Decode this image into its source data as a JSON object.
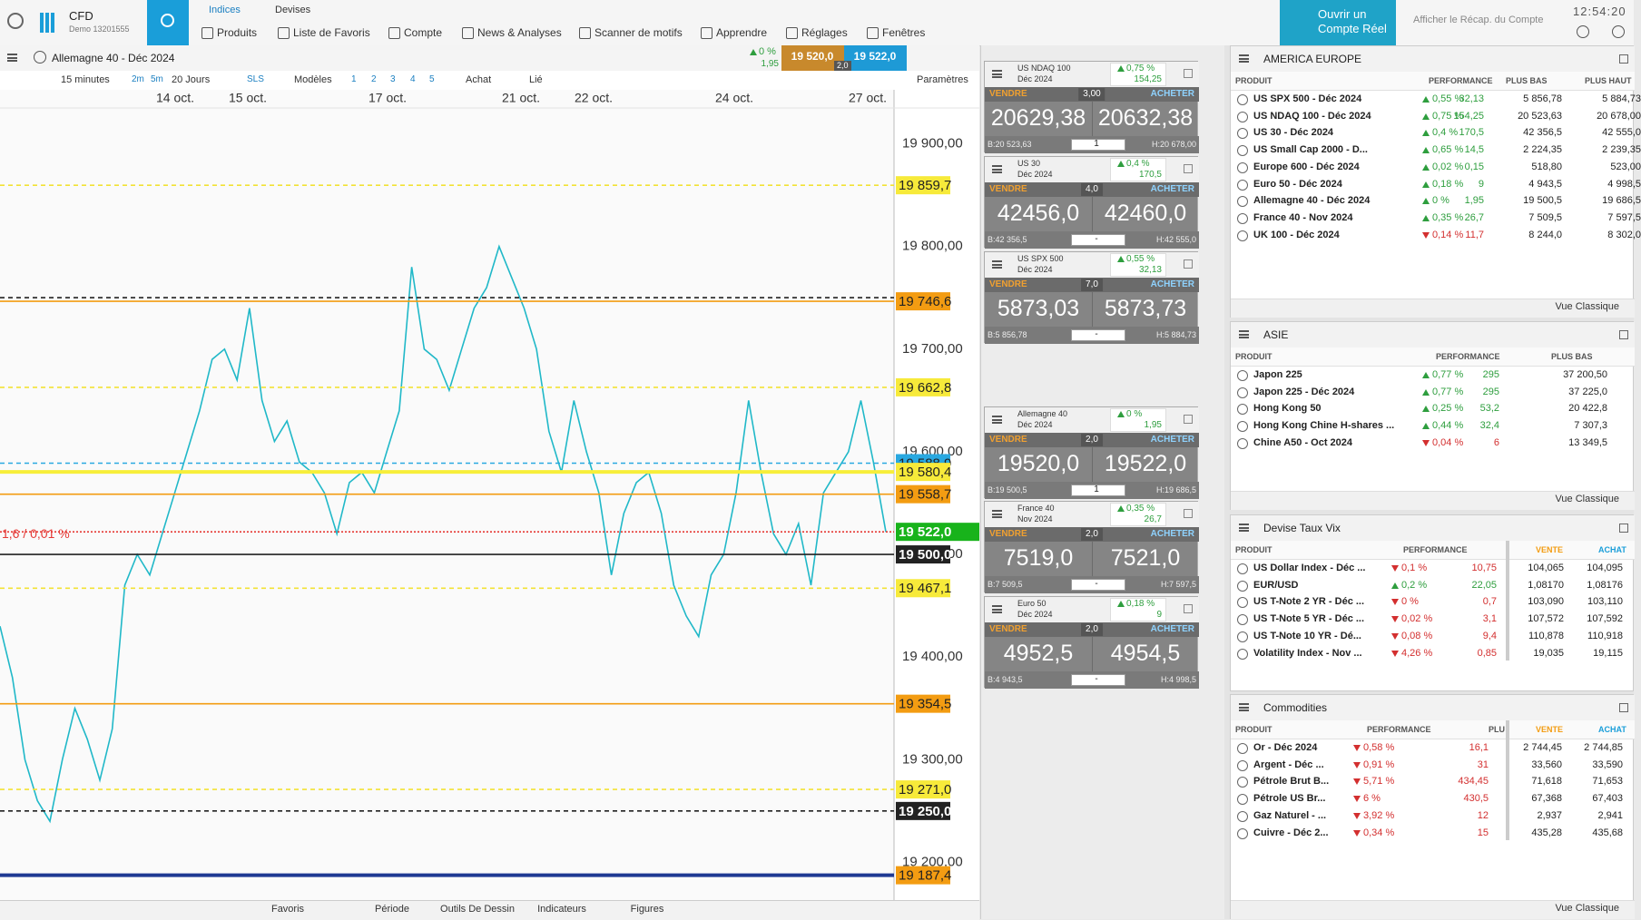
{
  "header": {
    "brand": "CFD",
    "account": "Demo 13201555",
    "tabs": [
      "Indices",
      "Devises"
    ],
    "menu": [
      "Produits",
      "Liste de Favoris",
      "Compte",
      "News & Analyses",
      "Scanner de motifs",
      "Apprendre",
      "Réglages",
      "Fenêtres"
    ],
    "open_account": "Ouvrir un Compte Réel",
    "summary": "Afficher le Récap. du Compte",
    "time": "12:54:20"
  },
  "chart_panel": {
    "instrument": "Allemagne 40 - Déc 2024",
    "change_pct": "0 %",
    "change": "1,95",
    "sell": "19 520,0",
    "buy": "19 522,0",
    "spread": "2,0",
    "toolbar": [
      "15 minutes",
      "2m",
      "5m",
      "20 Jours",
      "SLS",
      "Modèles",
      "1",
      "2",
      "3",
      "4",
      "5",
      "Achat",
      "Lié",
      "Paramètres"
    ],
    "bottom_toolbar": [
      "Favoris",
      "Période",
      "Outils De Dessin",
      "Indicateurs",
      "Figures"
    ]
  },
  "chart_data": {
    "type": "line",
    "color": "#20b8c8",
    "x_labels": [
      "14 oct.",
      "15 oct.",
      "17 oct.",
      "21 oct.",
      "22 oct.",
      "24 oct.",
      "27 oct."
    ],
    "values": [
      19430,
      19380,
      19300,
      19260,
      19240,
      19300,
      19350,
      19320,
      19280,
      19330,
      19470,
      19500,
      19480,
      19520,
      19560,
      19600,
      19640,
      19690,
      19700,
      19670,
      19740,
      19650,
      19610,
      19630,
      19590,
      19580,
      19560,
      19520,
      19570,
      19580,
      19560,
      19600,
      19640,
      19780,
      19700,
      19690,
      19660,
      19700,
      19740,
      19760,
      19800,
      19770,
      19740,
      19700,
      19620,
      19580,
      19650,
      19600,
      19560,
      19480,
      19540,
      19570,
      19580,
      19540,
      19470,
      19440,
      19420,
      19480,
      19500,
      19560,
      19650,
      19580,
      19520,
      19500,
      19530,
      19470,
      19560,
      19580,
      19600,
      19650,
      19590,
      19522
    ],
    "ylim": [
      19165,
      19935
    ],
    "yticks": [
      {
        "value": 19200,
        "label": "19 200,00"
      },
      {
        "value": 19300,
        "label": "19 300,00"
      },
      {
        "value": 19400,
        "label": "19 400,00"
      },
      {
        "value": 19500,
        "label": "19 500,00"
      },
      {
        "value": 19600,
        "label": "19 600,00"
      },
      {
        "value": 19700,
        "label": "19 700,00"
      },
      {
        "value": 19800,
        "label": "19 800,00"
      },
      {
        "value": 19900,
        "label": "19 900,00"
      }
    ],
    "levels": [
      {
        "value": 19859.7,
        "label": "19 859,7",
        "color": "#f2e234",
        "box": "#f7ea3a",
        "text_color": "#222",
        "style": "dashed"
      },
      {
        "value": 19746.6,
        "label": "19 746,6",
        "color": "#f39c12",
        "box": "#f39c12",
        "text_color": "#222",
        "style": "double"
      },
      {
        "value": 19662.8,
        "label": "19 662,8",
        "color": "#f2e234",
        "box": "#f7ea3a",
        "text_color": "#222",
        "style": "dashed"
      },
      {
        "value": 19588.9,
        "label": "19 588,9",
        "color": "#29a8e0",
        "box": "#29a8e0",
        "text_color": "#222",
        "style": "dashed"
      },
      {
        "value": 19580.4,
        "label": "19 580,4",
        "color": "#f7ee3a",
        "box": "#f7ea3a",
        "text_color": "#222",
        "style": "thick"
      },
      {
        "value": 19558.7,
        "label": "19 558,7",
        "color": "#f39c12",
        "box": "#f39c12",
        "text_color": "#222",
        "style": "solid"
      },
      {
        "value": 19522.0,
        "label": "19 522,0",
        "color": "#e53935",
        "box": "#18b31b",
        "text_color": "#fff",
        "style": "dotted"
      },
      {
        "value": 19500.0,
        "label": "19 500,0",
        "color": "#222222",
        "box": "#222222",
        "text_color": "#fff",
        "style": "solid"
      },
      {
        "value": 19467.1,
        "label": "19 467,1",
        "color": "#f2e234",
        "box": "#f7ea3a",
        "text_color": "#222",
        "style": "dashed"
      },
      {
        "value": 19354.5,
        "label": "19 354,5",
        "color": "#f39c12",
        "box": "#f39c12",
        "text_color": "#222",
        "style": "solid"
      },
      {
        "value": 19271.0,
        "label": "19 271,0",
        "color": "#f2e234",
        "box": "#f7ea3a",
        "text_color": "#222",
        "style": "dashed"
      },
      {
        "value": 19250.0,
        "label": "19 250,0",
        "color": "#222222",
        "box": "#222222",
        "text_color": "#fff",
        "style": "dashed"
      },
      {
        "value": 19187.4,
        "label": "19 187,4",
        "color": "#1f3a93",
        "box": "#f39c12",
        "text_color": "#222",
        "style": "thick"
      }
    ],
    "annotation": "1,6 / 0,01 %"
  },
  "quotes": {
    "sell_label": "VENDRE",
    "buy_label": "ACHETER",
    "items": [
      {
        "name": "US NDAQ 100",
        "expiry": "Déc 2024",
        "trend": "up",
        "change_pct": "0,75 %",
        "change": "154,25",
        "spread": "3,00",
        "sell": "20629,38",
        "buy": "20632,38",
        "low": "B:20 523,63",
        "qty": "1",
        "high": "H:20 678,00"
      },
      {
        "name": "US 30",
        "expiry": "Déc 2024",
        "trend": "up",
        "change_pct": "0,4 %",
        "change": "170,5",
        "spread": "4,0",
        "sell": "42456,0",
        "buy": "42460,0",
        "low": "B:42 356,5",
        "qty": "-",
        "high": "H:42 555,0"
      },
      {
        "name": "US SPX 500",
        "expiry": "Déc 2024",
        "trend": "up",
        "change_pct": "0,55 %",
        "change": "32,13",
        "spread": "7,0",
        "sell": "5873,03",
        "buy": "5873,73",
        "low": "B:5 856,78",
        "qty": "-",
        "high": "H:5 884,73"
      },
      {
        "name": "Allemagne 40",
        "expiry": "Déc 2024",
        "trend": "up",
        "change_pct": "0 %",
        "change": "1,95",
        "spread": "2,0",
        "sell": "19520,0",
        "buy": "19522,0",
        "low": "B:19 500,5",
        "qty": "1",
        "high": "H:19 686,5"
      },
      {
        "name": "France 40",
        "expiry": "Nov 2024",
        "trend": "up",
        "change_pct": "0,35 %",
        "change": "26,7",
        "spread": "2,0",
        "sell": "7519,0",
        "buy": "7521,0",
        "low": "B:7 509,5",
        "qty": "-",
        "high": "H:7 597,5"
      },
      {
        "name": "Euro 50",
        "expiry": "Déc 2024",
        "trend": "up",
        "change_pct": "0,18 %",
        "change": "9",
        "spread": "2,0",
        "sell": "4952,5",
        "buy": "4954,5",
        "low": "B:4 943,5",
        "qty": "-",
        "high": "H:4 998,5"
      }
    ]
  },
  "tables": [
    {
      "title": "AMERICA EUROPE",
      "headers": [
        "PRODUIT",
        "PERFORMANCE",
        "PLUS BAS",
        "PLUS HAUT"
      ],
      "footer": "Vue Classique",
      "rows": [
        {
          "trend": "up",
          "cells": [
            "US SPX 500 - Déc 2024",
            "0,55 %",
            "32,13",
            "5 856,78",
            "5 884,73"
          ]
        },
        {
          "trend": "up",
          "cells": [
            "US NDAQ 100 - Déc 2024",
            "0,75 %",
            "154,25",
            "20 523,63",
            "20 678,00"
          ]
        },
        {
          "trend": "up",
          "cells": [
            "US 30 - Déc 2024",
            "0,4 %",
            "170,5",
            "42 356,5",
            "42 555,0"
          ]
        },
        {
          "trend": "up",
          "cells": [
            "US Small Cap 2000 - D...",
            "0,65 %",
            "14,5",
            "2 224,35",
            "2 239,35"
          ]
        },
        {
          "trend": "up",
          "cells": [
            "Europe 600 - Déc 2024",
            "0,02 %",
            "0,15",
            "518,80",
            "523,00"
          ]
        },
        {
          "trend": "up",
          "cells": [
            "Euro 50 - Déc 2024",
            "0,18 %",
            "9",
            "4 943,5",
            "4 998,5"
          ]
        },
        {
          "trend": "up",
          "cells": [
            "Allemagne 40 - Déc 2024",
            "0 %",
            "1,95",
            "19 500,5",
            "19 686,5"
          ]
        },
        {
          "trend": "up",
          "cells": [
            "France 40 - Nov 2024",
            "0,35 %",
            "26,7",
            "7 509,5",
            "7 597,5"
          ]
        },
        {
          "trend": "down",
          "cells": [
            "UK 100 - Déc 2024",
            "0,14 %",
            "11,7",
            "8 244,0",
            "8 302,0"
          ]
        }
      ]
    },
    {
      "title": "ASIE",
      "headers": [
        "PRODUIT",
        "PERFORMANCE",
        "PLUS BAS"
      ],
      "footer": "Vue Classique",
      "rows": [
        {
          "trend": "up",
          "cells": [
            "Japon 225",
            "0,77 %",
            "295",
            "37 200,50"
          ]
        },
        {
          "trend": "up",
          "cells": [
            "Japon 225 - Déc 2024",
            "0,77 %",
            "295",
            "37 225,0"
          ]
        },
        {
          "trend": "up",
          "cells": [
            "Hong Kong 50",
            "0,25 %",
            "53,2",
            "20 422,8"
          ]
        },
        {
          "trend": "up",
          "cells": [
            "Hong Kong Chine H-shares ...",
            "0,44 %",
            "32,4",
            "7 307,3"
          ]
        },
        {
          "trend": "down",
          "cells": [
            "Chine A50 - Oct 2024",
            "0,04 %",
            "6",
            "13 349,5"
          ]
        }
      ]
    },
    {
      "title": "Devise Taux Vix",
      "headers": [
        "PRODUIT",
        "PERFORMANCE",
        "VENTE",
        "ACHAT"
      ],
      "rows": [
        {
          "trend": "down",
          "cells": [
            "US Dollar Index - Déc ...",
            "0,1 %",
            "10,75",
            "104,065",
            "104,095"
          ]
        },
        {
          "trend": "up",
          "cells": [
            "EUR/USD",
            "0,2 %",
            "22,05",
            "1,08170",
            "1,08176"
          ]
        },
        {
          "trend": "down",
          "cells": [
            "US T-Note 2 YR - Déc ...",
            "0 %",
            "0,7",
            "103,090",
            "103,110"
          ]
        },
        {
          "trend": "down",
          "cells": [
            "US T-Note 5 YR - Déc ...",
            "0,02 %",
            "3,1",
            "107,572",
            "107,592"
          ]
        },
        {
          "trend": "down",
          "cells": [
            "US T-Note 10 YR - Dé...",
            "0,08 %",
            "9,4",
            "110,878",
            "110,918"
          ]
        },
        {
          "trend": "down",
          "cells": [
            "Volatility Index - Nov ...",
            "4,26 %",
            "0,85",
            "19,035",
            "19,115"
          ]
        }
      ]
    },
    {
      "title": "Commodities",
      "headers": [
        "PRODUIT",
        "PERFORMANCE",
        "PLU",
        "VENTE",
        "ACHAT"
      ],
      "footer": "Vue Classique",
      "rows": [
        {
          "trend": "down",
          "cells": [
            "Or - Déc 2024",
            "0,58 %",
            "16,1",
            "2 744,45",
            "2 744,85"
          ]
        },
        {
          "trend": "down",
          "cells": [
            "Argent - Déc ...",
            "0,91 %",
            "31",
            "33,560",
            "33,590"
          ]
        },
        {
          "trend": "down",
          "cells": [
            "Pétrole Brut B...",
            "5,71 %",
            "434,45",
            "71,618",
            "71,653"
          ]
        },
        {
          "trend": "down",
          "cells": [
            "Pétrole US Br...",
            "6 %",
            "430,5",
            "67,368",
            "67,403"
          ]
        },
        {
          "trend": "down",
          "cells": [
            "Gaz Naturel - ...",
            "3,92 %",
            "12",
            "2,937",
            "2,941"
          ]
        },
        {
          "trend": "down",
          "cells": [
            "Cuivre - Déc 2...",
            "0,34 %",
            "15",
            "435,28",
            "435,68"
          ]
        }
      ]
    }
  ]
}
